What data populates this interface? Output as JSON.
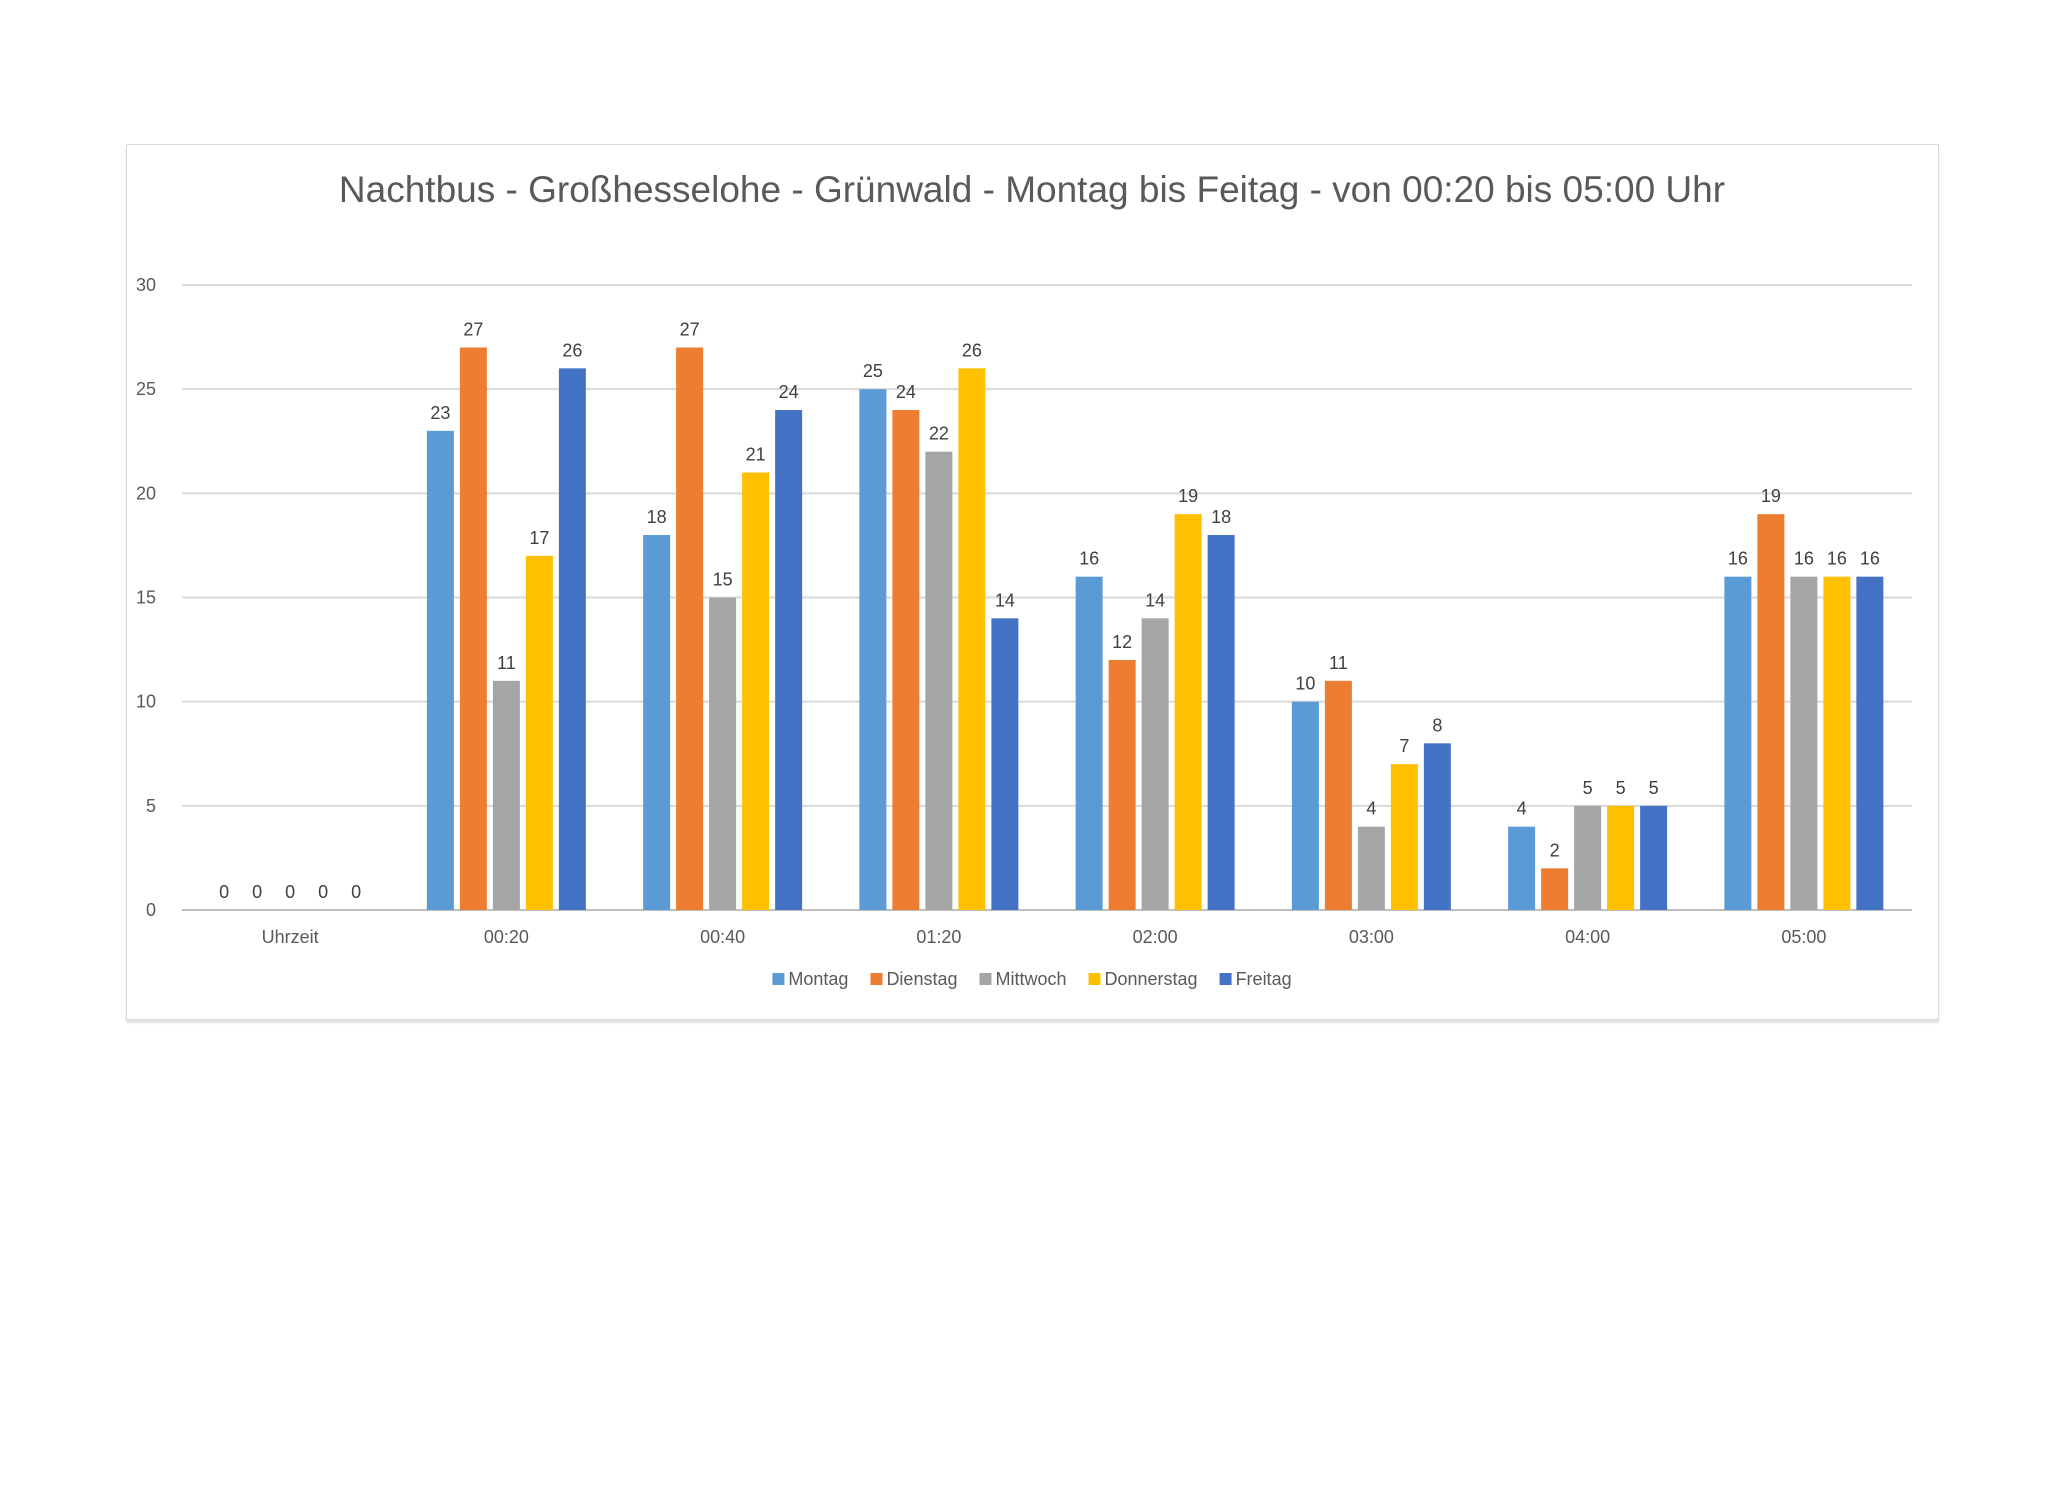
{
  "chart_data": {
    "type": "bar",
    "title": "Nachtbus - Großhesselohe - Grünwald - Montag bis Feitag - von 00:20 bis 05:00 Uhr",
    "xlabel": "",
    "ylabel": "",
    "ylim": [
      0,
      30
    ],
    "yticks": [
      0,
      5,
      10,
      15,
      20,
      25,
      30
    ],
    "grid": true,
    "legend_position": "bottom",
    "categories": [
      "Uhrzeit",
      "00:20",
      "00:40",
      "01:20",
      "02:00",
      "03:00",
      "04:00",
      "05:00"
    ],
    "series": [
      {
        "name": "Montag",
        "color": "#5b9bd5",
        "values": [
          0,
          23,
          18,
          25,
          16,
          10,
          4,
          16
        ]
      },
      {
        "name": "Dienstag",
        "color": "#ed7d31",
        "values": [
          0,
          27,
          27,
          24,
          12,
          11,
          2,
          19
        ]
      },
      {
        "name": "Mittwoch",
        "color": "#a5a5a5",
        "values": [
          0,
          11,
          15,
          22,
          14,
          4,
          5,
          16
        ]
      },
      {
        "name": "Donnerstag",
        "color": "#ffc000",
        "values": [
          0,
          17,
          21,
          26,
          19,
          7,
          5,
          16
        ]
      },
      {
        "name": "Freitag",
        "color": "#4472c4",
        "values": [
          0,
          26,
          24,
          14,
          18,
          8,
          5,
          16
        ]
      }
    ]
  }
}
